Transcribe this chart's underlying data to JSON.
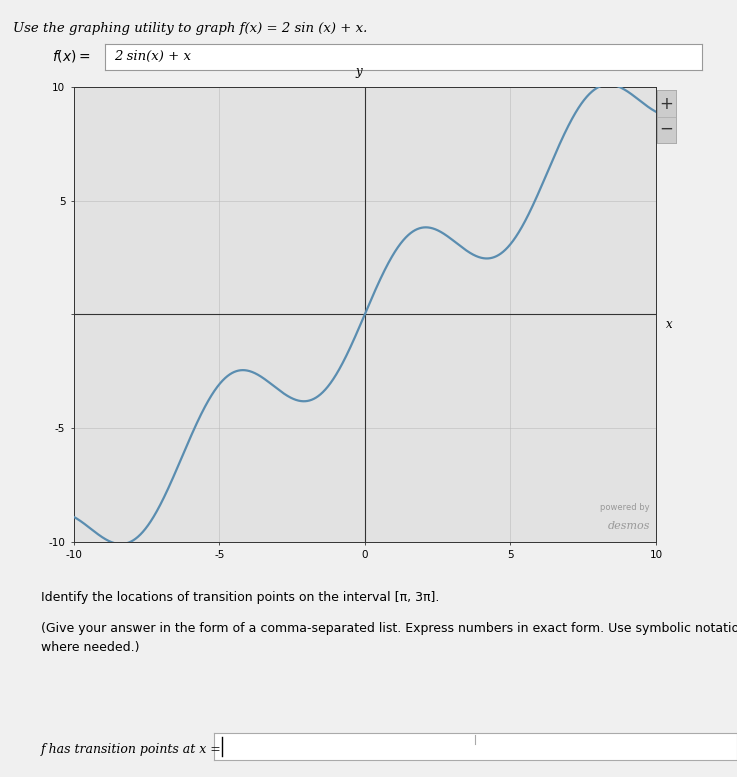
{
  "title_text": "Use the graphing utility to graph f(x) = 2 sin (x) + x.",
  "input_box_text": "2 sin(x) + x",
  "xlim": [
    -10,
    10
  ],
  "ylim": [
    -10,
    10
  ],
  "xticks": [
    -10,
    -5,
    0,
    5,
    10
  ],
  "yticks": [
    -10,
    -5,
    0,
    5,
    10
  ],
  "xlabel": "x",
  "ylabel": "y",
  "line_color": "#5a8db0",
  "line_width": 1.6,
  "grid_color": "#bbbbbb",
  "grid_linewidth": 0.4,
  "axis_color": "#333333",
  "plot_bg_color": "#e2e2e2",
  "panel_bg_color": "#d8d8d8",
  "outer_panel_bg": "#e8e8e8",
  "page_bg_color": "#f0f0f0",
  "identify_text": "Identify the locations of transition points on the interval [π, 3π].",
  "give_text": "(Give your answer in the form of a comma-separated list. Express numbers in exact form. Use symbolic notation and fractions",
  "where_text": "where needed.)",
  "answer_label": "f has transition points at x = ",
  "desmos_line1": "powered by",
  "desmos_line2": "desmos",
  "tick_fontsize": 7.5,
  "label_fontsize": 8.5,
  "title_fontsize": 9.5,
  "body_fontsize": 9.0,
  "answer_fontsize": 9.0,
  "btn_color": "#cccccc"
}
